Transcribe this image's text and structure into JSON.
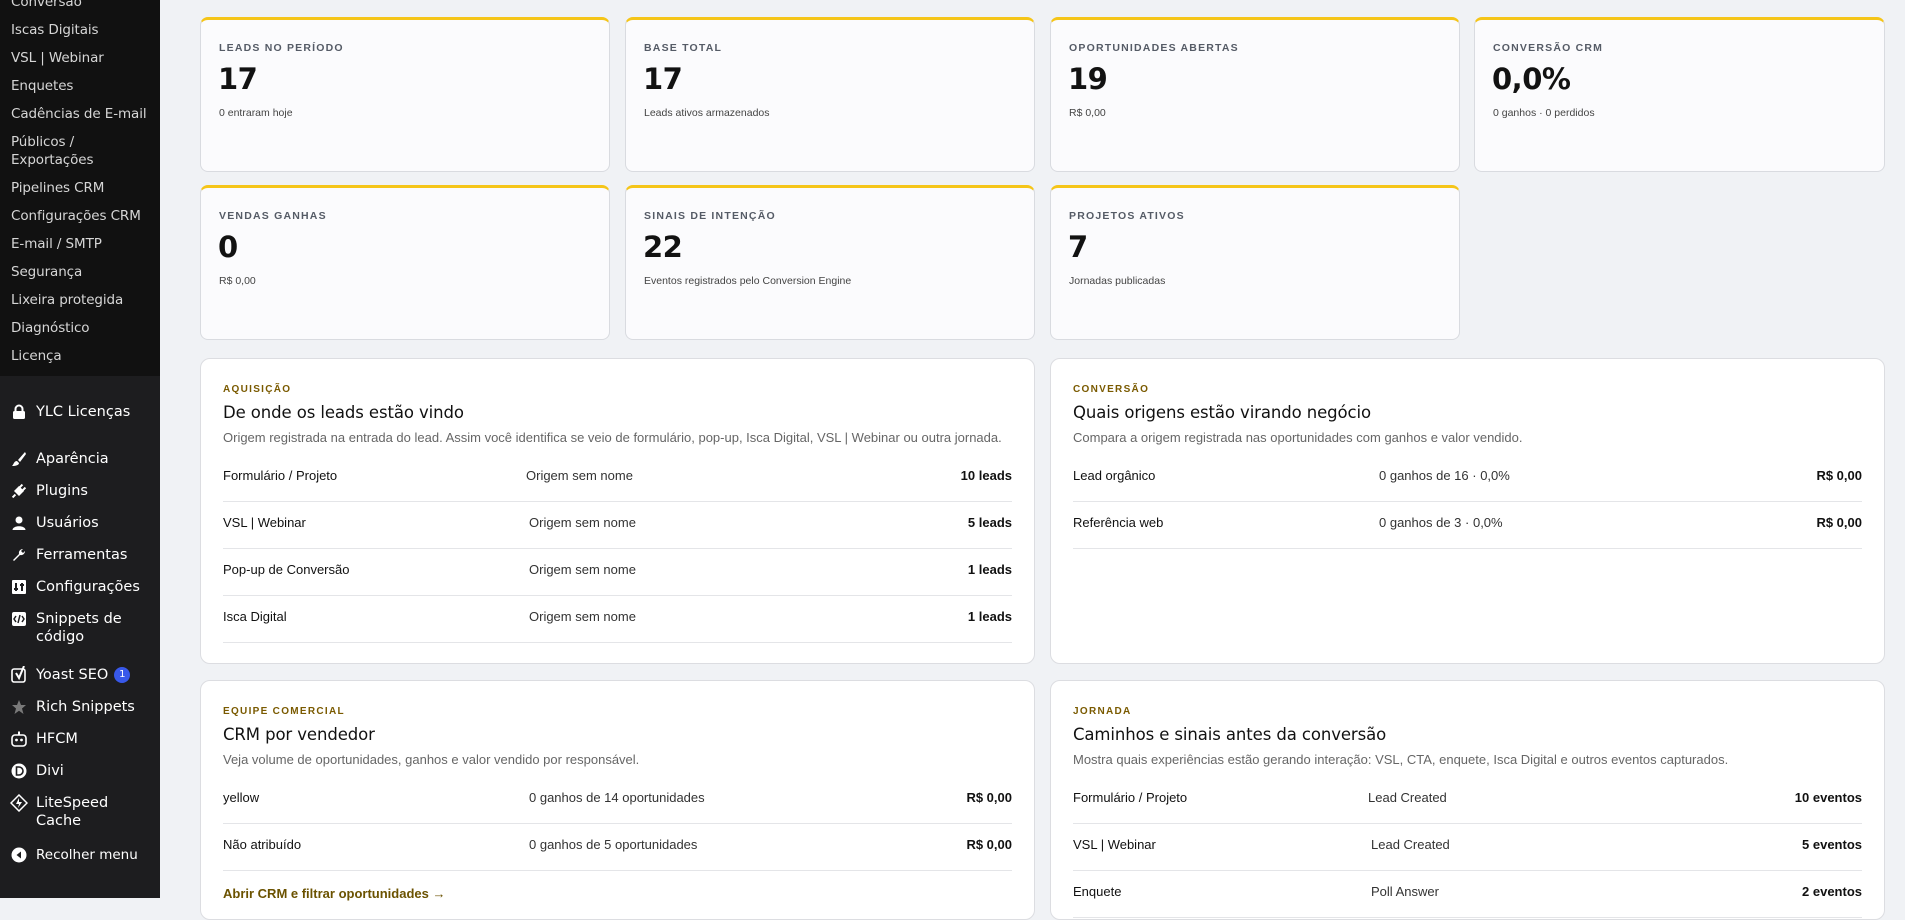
{
  "sidebar": {
    "submenu": [
      {
        "label": "Conversão"
      },
      {
        "label": "Iscas Digitais"
      },
      {
        "label": "VSL | Webinar"
      },
      {
        "label": "Enquetes"
      },
      {
        "label": "Cadências de E-mail"
      },
      {
        "label": "Públicos / Exportações"
      },
      {
        "label": "Pipelines CRM"
      },
      {
        "label": "Configurações CRM"
      },
      {
        "label": "E-mail / SMTP"
      },
      {
        "label": "Segurança"
      },
      {
        "label": "Lixeira protegida"
      },
      {
        "label": "Diagnóstico"
      },
      {
        "label": "Licença"
      }
    ],
    "ylc_label": "YLC Licenças",
    "menu": [
      {
        "label": "Aparência",
        "icon": "paintbrush-icon"
      },
      {
        "label": "Plugins",
        "icon": "plugin-icon"
      },
      {
        "label": "Usuários",
        "icon": "user-icon"
      },
      {
        "label": "Ferramentas",
        "icon": "wrench-icon"
      },
      {
        "label": "Configurações",
        "icon": "settings-icon"
      },
      {
        "label": "Snippets de código",
        "icon": "code-snippet-icon"
      }
    ],
    "menu2": [
      {
        "label": "Yoast SEO",
        "icon": "yoast-icon",
        "badge": "1"
      },
      {
        "label": "Rich Snippets",
        "icon": "star-icon"
      },
      {
        "label": "HFCM",
        "icon": "robot-icon"
      },
      {
        "label": "Divi",
        "icon": "divi-icon"
      },
      {
        "label": "LiteSpeed Cache",
        "icon": "litespeed-icon"
      }
    ],
    "collapse_label": "Recolher menu"
  },
  "cards": [
    {
      "label": "LEADS NO PERÍODO",
      "value": "17",
      "sub": "0 entraram hoje"
    },
    {
      "label": "BASE TOTAL",
      "value": "17",
      "sub": "Leads ativos armazenados"
    },
    {
      "label": "OPORTUNIDADES ABERTAS",
      "value": "19",
      "sub": "R$ 0,00"
    },
    {
      "label": "CONVERSÃO CRM",
      "value": "0,0%",
      "sub": "0 ganhos · 0 perdidos"
    },
    {
      "label": "VENDAS GANHAS",
      "value": "0",
      "sub": "R$ 0,00"
    },
    {
      "label": "SINAIS DE INTENÇÃO",
      "value": "22",
      "sub": "Eventos registrados pelo Conversion Engine"
    },
    {
      "label": "PROJETOS ATIVOS",
      "value": "7",
      "sub": "Jornadas publicadas"
    }
  ],
  "acquisition": {
    "eyebrow": "AQUISIÇÃO",
    "title": "De onde os leads estão vindo",
    "desc": "Origem registrada na entrada do lead. Assim você identifica se veio de formulário, pop-up, Isca Digital, VSL | Webinar ou outra jornada.",
    "rows": [
      {
        "source": "Formulário / Projeto",
        "origin": "Origem sem nome",
        "count": "10 leads"
      },
      {
        "source": "VSL | Webinar",
        "origin": "Origem sem nome",
        "count": "5 leads"
      },
      {
        "source": "Pop-up de Conversão",
        "origin": "Origem sem nome",
        "count": "1 leads"
      },
      {
        "source": "Isca Digital",
        "origin": "Origem sem nome",
        "count": "1 leads"
      }
    ]
  },
  "conversion": {
    "eyebrow": "CONVERSÃO",
    "title": "Quais origens estão virando negócio",
    "desc": "Compara a origem registrada nas oportunidades com ganhos e valor vendido.",
    "rows": [
      {
        "source": "Lead orgânico",
        "detail": "0 ganhos de 16 · 0,0%",
        "value": "R$ 0,00"
      },
      {
        "source": "Referência web",
        "detail": "0 ganhos de 3 · 0,0%",
        "value": "R$ 0,00"
      }
    ]
  },
  "sales_team": {
    "eyebrow": "EQUIPE COMERCIAL",
    "title": "CRM por vendedor",
    "desc": "Veja volume de oportunidades, ganhos e valor vendido por responsável.",
    "rows": [
      {
        "seller": "yellow",
        "detail": "0 ganhos de 14 oportunidades",
        "value": "R$ 0,00"
      },
      {
        "seller": "Não atribuído",
        "detail": "0 ganhos de 5 oportunidades",
        "value": "R$ 0,00"
      }
    ],
    "link": "Abrir CRM e filtrar oportunidades →"
  },
  "journey": {
    "eyebrow": "JORNADA",
    "title": "Caminhos e sinais antes da conversão",
    "desc": "Mostra quais experiências estão gerando interação: VSL, CTA, enquete, Isca Digital e outros eventos capturados.",
    "rows": [
      {
        "source": "Formulário / Projeto",
        "event": "Lead Created",
        "count": "10 eventos"
      },
      {
        "source": "VSL | Webinar",
        "event": "Lead Created",
        "count": "5 eventos"
      },
      {
        "source": "Enquete",
        "event": "Poll Answer",
        "count": "2 eventos"
      }
    ]
  }
}
